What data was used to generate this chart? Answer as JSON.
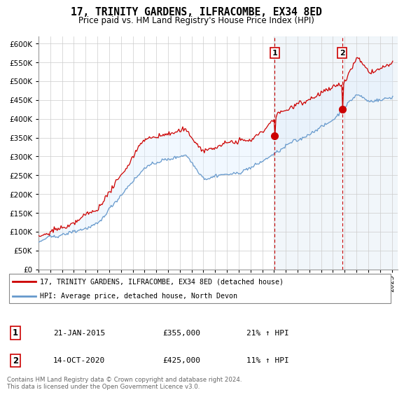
{
  "title": "17, TRINITY GARDENS, ILFRACOMBE, EX34 8ED",
  "subtitle": "Price paid vs. HM Land Registry's House Price Index (HPI)",
  "ylim": [
    0,
    620000
  ],
  "yticks": [
    0,
    50000,
    100000,
    150000,
    200000,
    250000,
    300000,
    350000,
    400000,
    450000,
    500000,
    550000,
    600000
  ],
  "xlim_start": 1995.0,
  "xlim_end": 2025.5,
  "legend_line1": "17, TRINITY GARDENS, ILFRACOMBE, EX34 8ED (detached house)",
  "legend_line2": "HPI: Average price, detached house, North Devon",
  "transaction1_date": "21-JAN-2015",
  "transaction1_price": "£355,000",
  "transaction1_hpi": "21% ↑ HPI",
  "transaction1_year": 2015.05,
  "transaction1_value": 355000,
  "transaction2_date": "14-OCT-2020",
  "transaction2_price": "£425,000",
  "transaction2_hpi": "11% ↑ HPI",
  "transaction2_year": 2020.79,
  "transaction2_value": 425000,
  "line_color_red": "#cc0000",
  "line_color_blue": "#6699cc",
  "fill_color": "#ddeeff",
  "shade_color": "#e8f0f8",
  "marker_box_color": "#cc0000",
  "copyright_text": "Contains HM Land Registry data © Crown copyright and database right 2024.\nThis data is licensed under the Open Government Licence v3.0."
}
